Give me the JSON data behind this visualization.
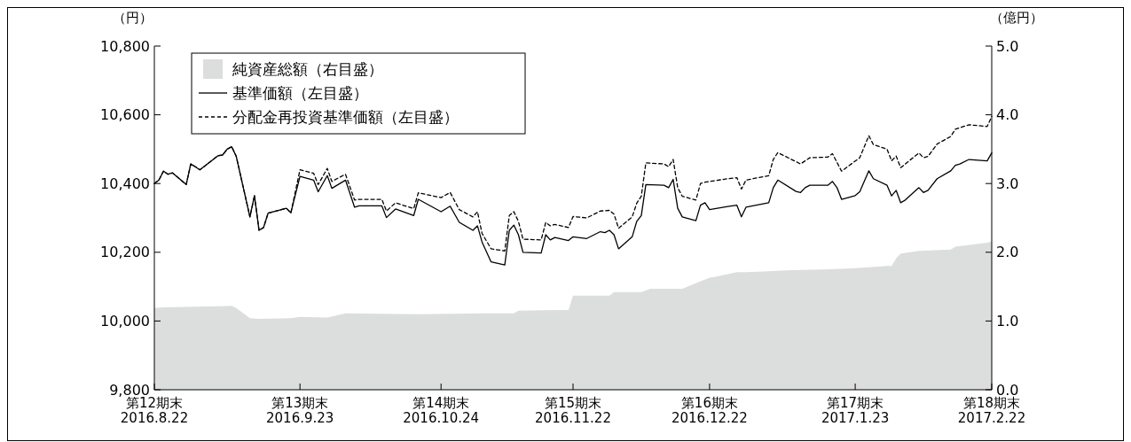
{
  "chart_data": {
    "type": "line",
    "ylabel": "（円）",
    "y2label": "（億円）",
    "xlim": [
      "2016-08-22",
      "2017-02-22"
    ],
    "xticks": [
      {
        "value": "2016-08-22",
        "label": "第12期末\n2016.8.22"
      },
      {
        "value": "2016-09-23",
        "label": "第13期末\n2016.9.23"
      },
      {
        "value": "2016-10-24",
        "label": "第14期末\n2016.10.24"
      },
      {
        "value": "2016-11-22",
        "label": "第15期末\n2016.11.22"
      },
      {
        "value": "2016-12-22",
        "label": "第16期末\n2016.12.22"
      },
      {
        "value": "2017-01-23",
        "label": "第17期末\n2017.1.23"
      },
      {
        "value": "2017-02-22",
        "label": "第18期末\n2017.2.22"
      }
    ],
    "ylim": [
      9800,
      10800
    ],
    "yticks": [
      {
        "value": 9800,
        "label": "9,800"
      },
      {
        "value": 10000,
        "label": "10,000"
      },
      {
        "value": 10200,
        "label": "10,200"
      },
      {
        "value": 10400,
        "label": "10,400"
      },
      {
        "value": 10600,
        "label": "10,600"
      },
      {
        "value": 10800,
        "label": "10,800"
      }
    ],
    "y2lim": [
      0,
      5
    ],
    "y2ticks": [
      {
        "value": 0,
        "label": "0.0"
      },
      {
        "value": 1,
        "label": "1.0"
      },
      {
        "value": 2,
        "label": "2.0"
      },
      {
        "value": 3,
        "label": "3.0"
      },
      {
        "value": 4,
        "label": "4.0"
      },
      {
        "value": 5,
        "label": "5.0"
      }
    ],
    "legend": "top left",
    "series": [
      {
        "name": "純資産総額（右目盛）",
        "type": "area",
        "axis": "y2",
        "color": "#dcdddd",
        "x": [
          "2016-08-22",
          "2016-08-24",
          "2016-09-08",
          "2016-09-09",
          "2016-09-12",
          "2016-09-14",
          "2016-09-21",
          "2016-09-23",
          "2016-09-29",
          "2016-10-03",
          "2016-10-19",
          "2016-11-02",
          "2016-11-09",
          "2016-11-10",
          "2016-11-18",
          "2016-11-21",
          "2016-11-22",
          "2016-11-30",
          "2016-12-01",
          "2016-12-07",
          "2016-12-09",
          "2016-12-16",
          "2016-12-22",
          "2016-12-23",
          "2016-12-28",
          "2016-12-30",
          "2017-01-03",
          "2017-01-09",
          "2017-01-16",
          "2017-01-20",
          "2017-01-23",
          "2017-01-26",
          "2017-01-30",
          "2017-01-31",
          "2017-02-01",
          "2017-02-02",
          "2017-02-06",
          "2017-02-13",
          "2017-02-14",
          "2017-02-21",
          "2017-02-22"
        ],
        "values": [
          1.19,
          1.2,
          1.22,
          1.19,
          1.04,
          1.03,
          1.04,
          1.06,
          1.05,
          1.11,
          1.1,
          1.11,
          1.11,
          1.15,
          1.16,
          1.16,
          1.37,
          1.37,
          1.42,
          1.42,
          1.47,
          1.47,
          1.63,
          1.64,
          1.71,
          1.71,
          1.72,
          1.74,
          1.75,
          1.76,
          1.77,
          1.78,
          1.8,
          1.8,
          1.91,
          1.98,
          2.02,
          2.04,
          2.08,
          2.14,
          2.16
        ]
      },
      {
        "name": "基準価額（左目盛）",
        "line_style": "solid",
        "color": "#000000",
        "x": [
          "2016-08-22",
          "2016-08-23",
          "2016-08-24",
          "2016-08-25",
          "2016-08-26",
          "2016-08-29",
          "2016-08-30",
          "2016-08-31",
          "2016-09-01",
          "2016-09-05",
          "2016-09-06",
          "2016-09-07",
          "2016-09-08",
          "2016-09-09",
          "2016-09-12",
          "2016-09-13",
          "2016-09-14",
          "2016-09-15",
          "2016-09-16",
          "2016-09-20",
          "2016-09-21",
          "2016-09-23",
          "2016-09-26",
          "2016-09-27",
          "2016-09-29",
          "2016-09-30",
          "2016-10-03",
          "2016-10-05",
          "2016-10-06",
          "2016-10-11",
          "2016-10-12",
          "2016-10-14",
          "2016-10-18",
          "2016-10-19",
          "2016-10-24",
          "2016-10-26",
          "2016-10-28",
          "2016-10-31",
          "2016-11-01",
          "2016-11-02",
          "2016-11-04",
          "2016-11-07",
          "2016-11-08",
          "2016-11-09",
          "2016-11-10",
          "2016-11-11",
          "2016-11-15",
          "2016-11-16",
          "2016-11-17",
          "2016-11-18",
          "2016-11-21",
          "2016-11-22",
          "2016-11-25",
          "2016-11-28",
          "2016-11-29",
          "2016-11-30",
          "2016-12-01",
          "2016-12-02",
          "2016-12-05",
          "2016-12-06",
          "2016-12-07",
          "2016-12-08",
          "2016-12-12",
          "2016-12-13",
          "2016-12-14",
          "2016-12-15",
          "2016-12-16",
          "2016-12-19",
          "2016-12-20",
          "2016-12-21",
          "2016-12-22",
          "2016-12-26",
          "2016-12-28",
          "2016-12-29",
          "2016-12-30",
          "2017-01-04",
          "2017-01-05",
          "2017-01-06",
          "2017-01-10",
          "2017-01-11",
          "2017-01-12",
          "2017-01-13",
          "2017-01-17",
          "2017-01-18",
          "2017-01-19",
          "2017-01-20",
          "2017-01-23",
          "2017-01-24",
          "2017-01-26",
          "2017-01-27",
          "2017-01-30",
          "2017-01-31",
          "2017-02-01",
          "2017-02-02",
          "2017-02-03",
          "2017-02-06",
          "2017-02-07",
          "2017-02-08",
          "2017-02-10",
          "2017-02-13",
          "2017-02-14",
          "2017-02-15",
          "2017-02-17",
          "2017-02-21",
          "2017-02-22"
        ],
        "values": [
          10400,
          10410,
          10436,
          10427,
          10431,
          10397,
          10457,
          10449,
          10440,
          10481,
          10483,
          10500,
          10507,
          10479,
          10303,
          10365,
          10264,
          10272,
          10314,
          10328,
          10315,
          10421,
          10410,
          10376,
          10423,
          10386,
          10410,
          10331,
          10335,
          10335,
          10301,
          10326,
          10307,
          10354,
          10318,
          10334,
          10287,
          10264,
          10277,
          10230,
          10172,
          10163,
          10264,
          10279,
          10251,
          10200,
          10198,
          10251,
          10236,
          10243,
          10234,
          10245,
          10240,
          10260,
          10257,
          10264,
          10251,
          10210,
          10245,
          10290,
          10307,
          10397,
          10395,
          10388,
          10412,
          10328,
          10303,
          10292,
          10337,
          10344,
          10324,
          10333,
          10337,
          10303,
          10331,
          10344,
          10388,
          10410,
          10377,
          10374,
          10388,
          10395,
          10395,
          10406,
          10388,
          10354,
          10365,
          10376,
          10437,
          10414,
          10395,
          10364,
          10380,
          10344,
          10352,
          10388,
          10374,
          10380,
          10414,
          10437,
          10453,
          10457,
          10470,
          10466,
          10489
        ]
      },
      {
        "name": "分配金再投資基準価額（左目盛）",
        "line_style": "dashed",
        "color": "#000000",
        "x": [
          "2016-08-22",
          "2016-08-23",
          "2016-08-24",
          "2016-08-25",
          "2016-08-26",
          "2016-08-29",
          "2016-08-30",
          "2016-08-31",
          "2016-09-01",
          "2016-09-05",
          "2016-09-06",
          "2016-09-07",
          "2016-09-08",
          "2016-09-09",
          "2016-09-12",
          "2016-09-13",
          "2016-09-14",
          "2016-09-15",
          "2016-09-16",
          "2016-09-20",
          "2016-09-21",
          "2016-09-23",
          "2016-09-26",
          "2016-09-27",
          "2016-09-29",
          "2016-09-30",
          "2016-10-03",
          "2016-10-05",
          "2016-10-06",
          "2016-10-11",
          "2016-10-12",
          "2016-10-14",
          "2016-10-18",
          "2016-10-19",
          "2016-10-24",
          "2016-10-26",
          "2016-10-28",
          "2016-10-31",
          "2016-11-01",
          "2016-11-02",
          "2016-11-04",
          "2016-11-07",
          "2016-11-08",
          "2016-11-09",
          "2016-11-10",
          "2016-11-11",
          "2016-11-15",
          "2016-11-16",
          "2016-11-17",
          "2016-11-18",
          "2016-11-21",
          "2016-11-22",
          "2016-11-25",
          "2016-11-28",
          "2016-11-30",
          "2016-12-01",
          "2016-12-02",
          "2016-12-05",
          "2016-12-06",
          "2016-12-07",
          "2016-12-08",
          "2016-12-12",
          "2016-12-13",
          "2016-12-14",
          "2016-12-15",
          "2016-12-16",
          "2016-12-19",
          "2016-12-20",
          "2016-12-21",
          "2016-12-26",
          "2016-12-28",
          "2016-12-29",
          "2016-12-30",
          "2017-01-04",
          "2017-01-05",
          "2017-01-06",
          "2017-01-11",
          "2017-01-12",
          "2017-01-13",
          "2017-01-17",
          "2017-01-18",
          "2017-01-20",
          "2017-01-24",
          "2017-01-26",
          "2017-01-27",
          "2017-01-30",
          "2017-01-31",
          "2017-02-01",
          "2017-02-02",
          "2017-02-06",
          "2017-02-07",
          "2017-02-08",
          "2017-02-10",
          "2017-02-13",
          "2017-02-14",
          "2017-02-17",
          "2017-02-21",
          "2017-02-22"
        ],
        "values": [
          10400,
          10410,
          10436,
          10427,
          10431,
          10397,
          10457,
          10449,
          10440,
          10481,
          10483,
          10500,
          10507,
          10479,
          10303,
          10365,
          10264,
          10272,
          10314,
          10328,
          10315,
          10440,
          10430,
          10397,
          10444,
          10406,
          10427,
          10352,
          10354,
          10354,
          10320,
          10344,
          10327,
          10373,
          10359,
          10374,
          10324,
          10303,
          10318,
          10255,
          10210,
          10204,
          10307,
          10318,
          10290,
          10238,
          10236,
          10287,
          10277,
          10281,
          10272,
          10304,
          10300,
          10320,
          10322,
          10311,
          10270,
          10303,
          10343,
          10363,
          10460,
          10457,
          10449,
          10470,
          10388,
          10363,
          10352,
          10400,
          10404,
          10414,
          10417,
          10384,
          10410,
          10423,
          10470,
          10490,
          10457,
          10466,
          10475,
          10477,
          10487,
          10436,
          10475,
          10539,
          10513,
          10500,
          10466,
          10480,
          10446,
          10489,
          10475,
          10479,
          10515,
          10537,
          10558,
          10571,
          10566,
          10595
        ]
      }
    ]
  }
}
